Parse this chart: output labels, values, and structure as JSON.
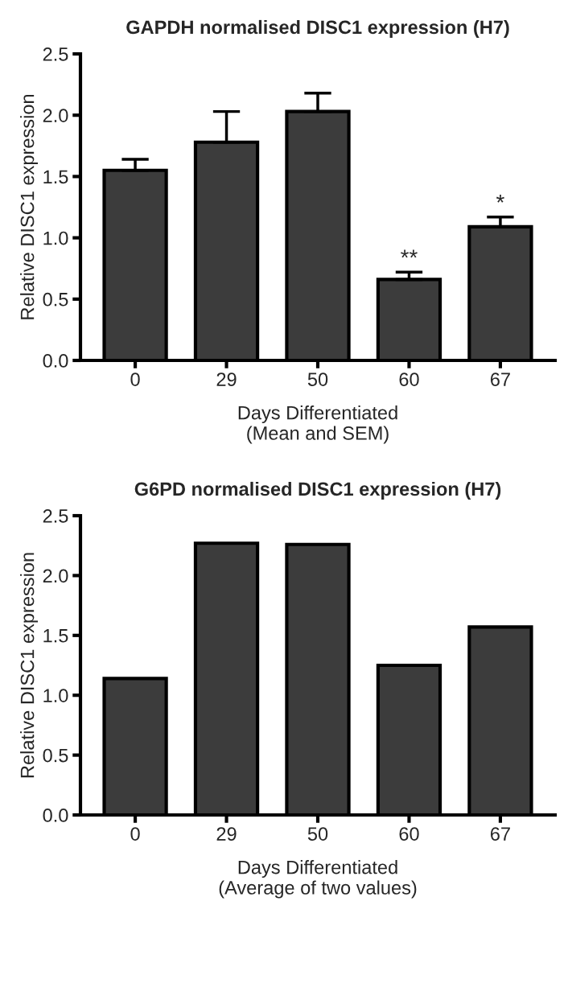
{
  "chart_data": [
    {
      "type": "bar",
      "title": "GAPDH normalised DISC1 expression (H7)",
      "xlabel": "Days Differentiated\n(Mean and SEM)",
      "ylabel": "Relative DISC1 expression",
      "categories": [
        "0",
        "29",
        "50",
        "60",
        "67"
      ],
      "values": [
        1.55,
        1.78,
        2.03,
        0.66,
        1.09
      ],
      "color": "#3c3c3c",
      "errors": [
        [
          1.55,
          1.64
        ],
        [
          1.78,
          2.03
        ],
        [
          2.03,
          2.18
        ],
        [
          0.66,
          0.72
        ],
        [
          1.09,
          1.17
        ]
      ],
      "ylim": [
        0,
        2.5
      ],
      "yticks": [
        {
          "value": 0,
          "label": "0.0"
        },
        0.5,
        {
          "value": 1,
          "label": "1.0"
        },
        1.5,
        {
          "value": 2,
          "label": "2.0"
        },
        2.5
      ],
      "grid": false,
      "annotations": [
        {
          "text": "**",
          "x": "60",
          "y": 0.66
        },
        {
          "text": "*",
          "x": "67",
          "y": 1.09
        }
      ]
    },
    {
      "type": "bar",
      "title": "G6PD normalised DISC1 expression (H7)",
      "xlabel": "Days Differentiated\n(Average of two values)",
      "ylabel": "Relative DISC1 expression",
      "categories": [
        "0",
        "29",
        "50",
        "60",
        "67"
      ],
      "values": [
        1.14,
        2.27,
        2.26,
        1.25,
        1.57
      ],
      "color": "#3c3c3c",
      "ylim": [
        0,
        2.5
      ],
      "yticks": [
        {
          "value": 0,
          "label": "0.0"
        },
        0.5,
        {
          "value": 1,
          "label": "1.0"
        },
        1.5,
        {
          "value": 2,
          "label": "2.0"
        },
        2.5
      ],
      "grid": false
    }
  ]
}
